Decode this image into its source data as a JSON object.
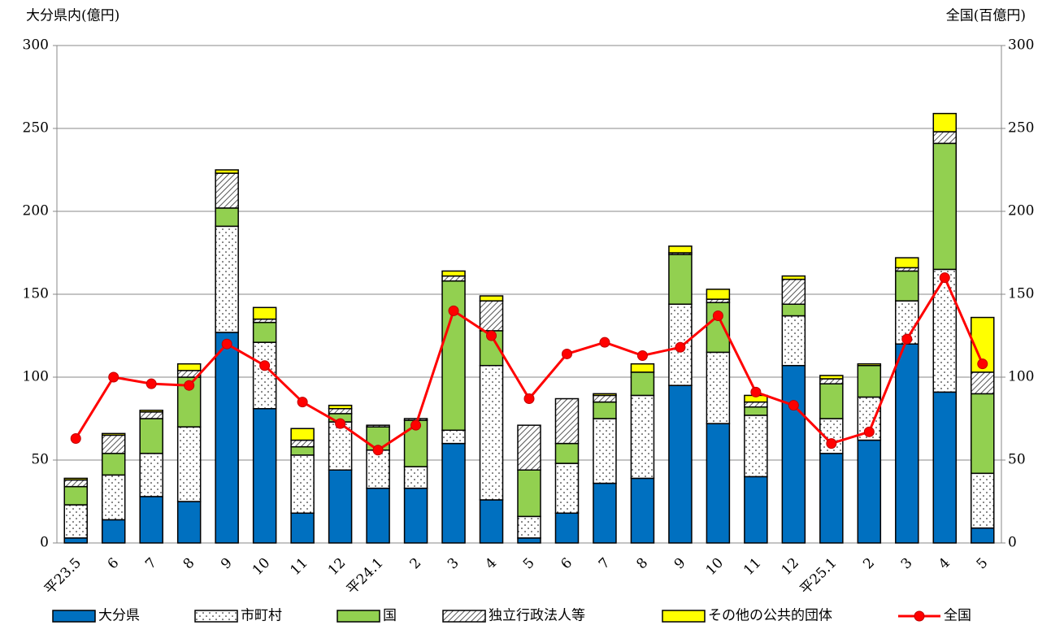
{
  "chart_data": {
    "type": "bar",
    "y_label": "大分県内(億円)",
    "y2_label": "全国(百億円)",
    "categories": [
      "平23.5",
      "6",
      "7",
      "8",
      "9",
      "10",
      "11",
      "12",
      "平24.1",
      "2",
      "3",
      "4",
      "5",
      "6",
      "7",
      "8",
      "9",
      "10",
      "11",
      "12",
      "平25.1",
      "2",
      "3",
      "4",
      "5"
    ],
    "series": [
      {
        "name": "大分県",
        "color": "#0070c0",
        "pattern": "solid",
        "values": [
          3,
          14,
          28,
          25,
          127,
          81,
          18,
          44,
          33,
          33,
          60,
          26,
          3,
          18,
          36,
          39,
          95,
          72,
          40,
          107,
          54,
          62,
          120,
          91,
          9
        ]
      },
      {
        "name": "市町村",
        "color": "#ffffff",
        "pattern": "dots",
        "values": [
          20,
          27,
          26,
          45,
          64,
          40,
          35,
          29,
          23,
          13,
          8,
          81,
          13,
          30,
          39,
          50,
          49,
          43,
          37,
          30,
          21,
          26,
          26,
          74,
          33
        ]
      },
      {
        "name": "国",
        "color": "#92d050",
        "pattern": "solid",
        "values": [
          11,
          13,
          21,
          30,
          11,
          12,
          5,
          5,
          14,
          28,
          90,
          21,
          28,
          12,
          10,
          14,
          30,
          30,
          5,
          7,
          21,
          19,
          18,
          76,
          48
        ]
      },
      {
        "name": "独立行政法人等",
        "color": "#ffffff",
        "pattern": "hatch",
        "values": [
          4,
          11,
          4,
          4,
          21,
          2,
          4,
          3,
          1,
          1,
          3,
          18,
          27,
          27,
          4,
          0,
          1,
          2,
          3,
          15,
          3,
          0,
          2,
          7,
          13
        ]
      },
      {
        "name": "その他の公共的団体",
        "color": "#ffff00",
        "pattern": "solid",
        "values": [
          1,
          1,
          1,
          4,
          2,
          7,
          7,
          2,
          0,
          0,
          3,
          3,
          0,
          0,
          1,
          5,
          4,
          6,
          4,
          2,
          2,
          1,
          6,
          11,
          33
        ]
      },
      {
        "name": "全国",
        "color": "#ff0000",
        "type": "line",
        "axis": "y2",
        "values": [
          63,
          100,
          96,
          95,
          120,
          107,
          85,
          72,
          56,
          71,
          140,
          125,
          87,
          114,
          121,
          113,
          118,
          137,
          91,
          83,
          60,
          67,
          123,
          160,
          108
        ]
      }
    ],
    "ylim": [
      0,
      300
    ],
    "yticks": [
      0,
      50,
      100,
      150,
      200,
      250,
      300
    ],
    "y2lim": [
      0,
      300
    ],
    "y2ticks": [
      0,
      50,
      100,
      150,
      200,
      250,
      300
    ],
    "grid": true,
    "legend": "bottom"
  }
}
